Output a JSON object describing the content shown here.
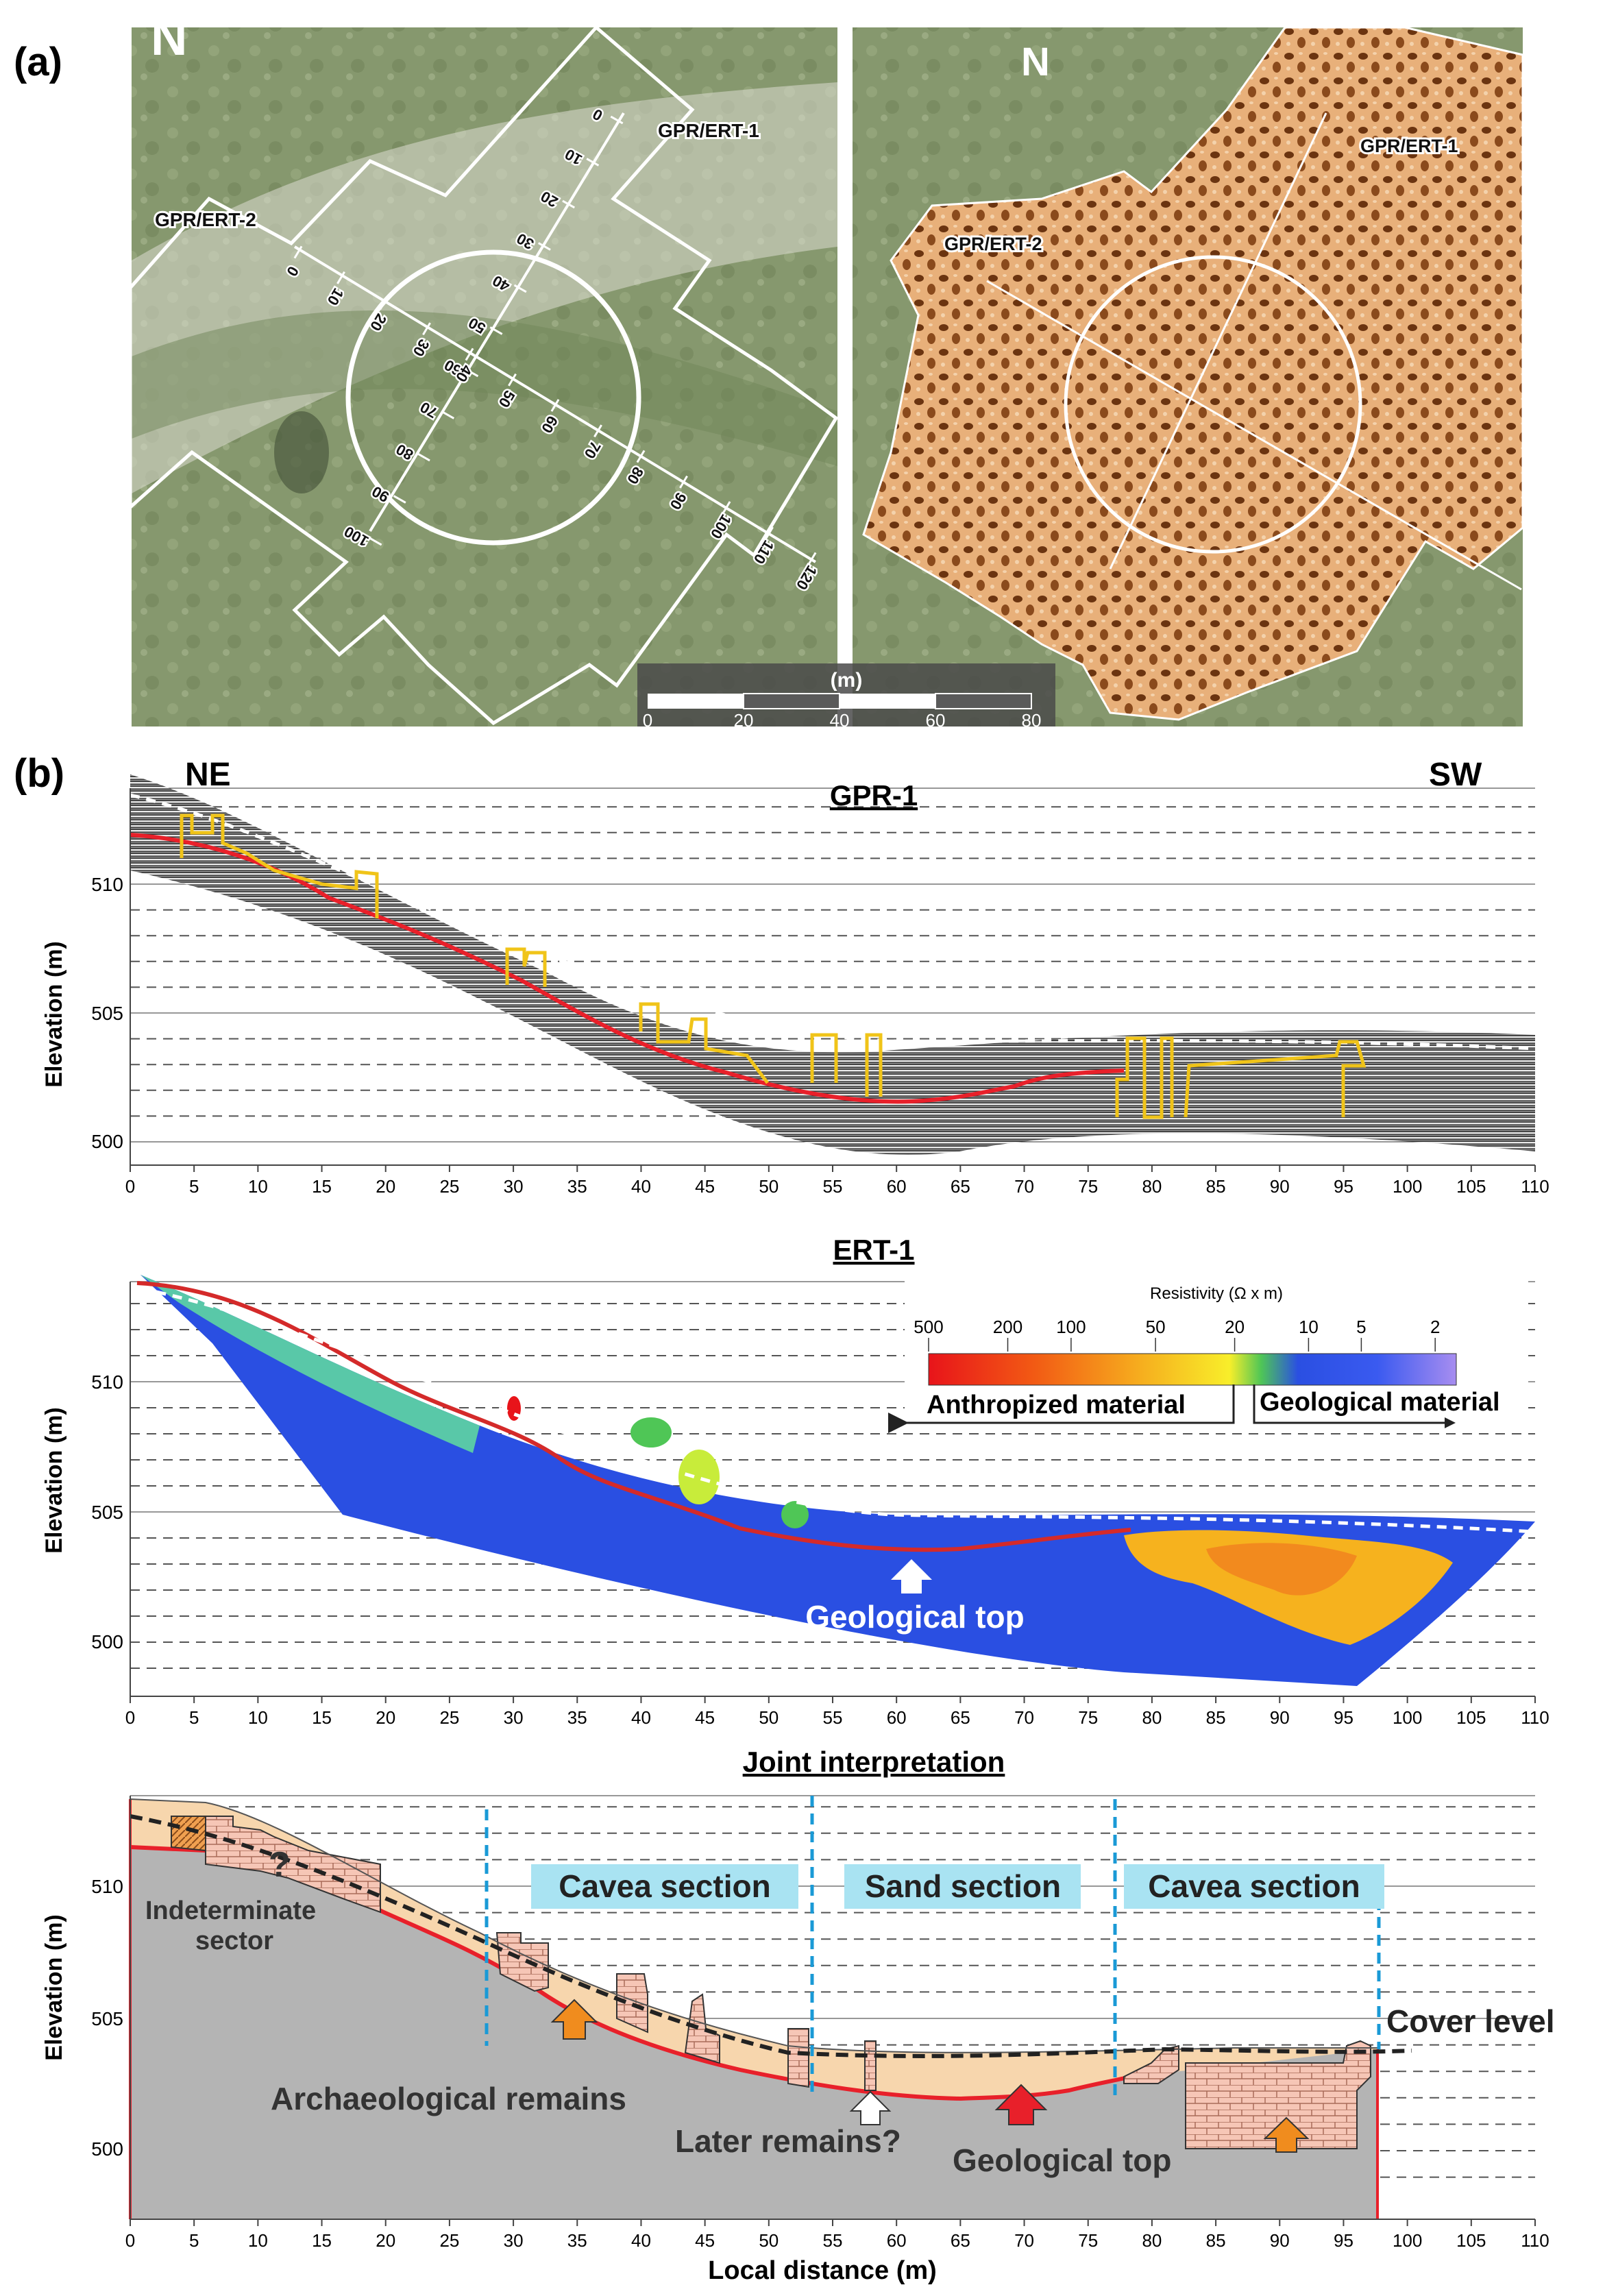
{
  "panel_a": {
    "label": "(a)",
    "north": "N",
    "profiles": [
      "GPR/ERT-1",
      "GPR/ERT-2"
    ],
    "ticks_1": [
      "0",
      "10",
      "20",
      "30",
      "40",
      "50",
      "60",
      "70",
      "80",
      "90",
      "100"
    ],
    "ticks_2": [
      "0",
      "10",
      "20",
      "30",
      "40",
      "50",
      "60",
      "70",
      "80",
      "90",
      "100",
      "110",
      "120"
    ],
    "scale_title": "(m)",
    "scale_ticks": [
      "0",
      "20",
      "40",
      "60",
      "80"
    ]
  },
  "panel_b": {
    "label": "(b)",
    "left_dir": "NE",
    "right_dir": "SW",
    "ylabel": "Elevation (m)",
    "y_ticks": [
      "510",
      "505",
      "500"
    ],
    "x_ticks": [
      "0",
      "5",
      "10",
      "15",
      "20",
      "25",
      "30",
      "35",
      "40",
      "45",
      "50",
      "55",
      "60",
      "65",
      "70",
      "75",
      "80",
      "85",
      "90",
      "95",
      "100",
      "105",
      "110"
    ],
    "xlabel": "Local distance (m)",
    "gpr": {
      "title": "GPR-1"
    },
    "ert": {
      "title": "ERT-1",
      "legend_title": "Resistivity (Ω x m)",
      "legend_ticks": [
        "500",
        "200",
        "100",
        "50",
        "20",
        "10",
        "5",
        "2"
      ],
      "anthropized": "Anthropized material",
      "geological": "Geological material",
      "geo_top": "Geological top"
    },
    "joint": {
      "title": "Joint interpretation",
      "indeterminate": "Indeterminate sector",
      "question": "?",
      "cavea_1": "Cavea section",
      "sand": "Sand section",
      "cavea_2": "Cavea section",
      "cover": "Cover level",
      "archaeo": "Archaeological remains",
      "later": "Later remains?",
      "geo_top": "Geological top"
    }
  },
  "colors": {
    "geo_line": "#e8202a",
    "remains_line": "#f0c419",
    "section_bg": "#a9e3f2",
    "cover_fill": "#f7d6ad",
    "bedrock": "#b4b4b4",
    "brick": "#f6c6b6"
  }
}
